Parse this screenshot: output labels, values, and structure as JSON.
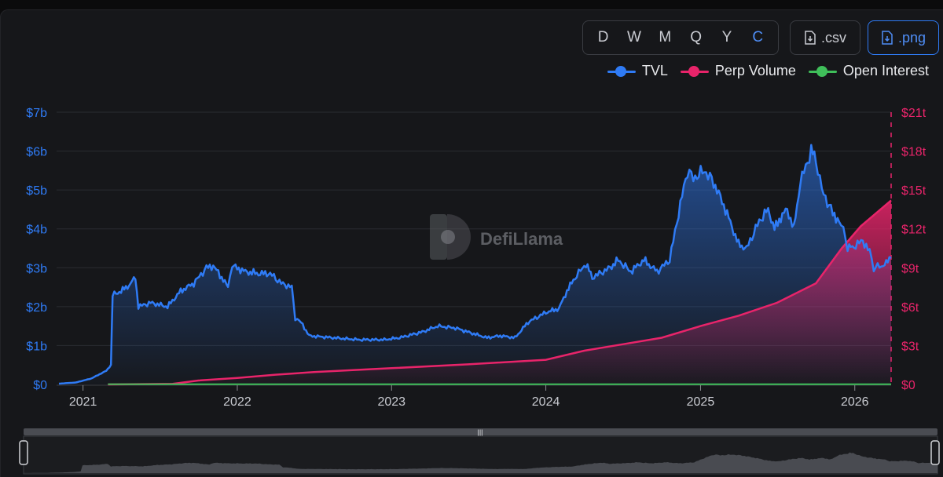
{
  "toolbar": {
    "periods": [
      "D",
      "W",
      "M",
      "Q",
      "Y",
      "C"
    ],
    "active_period": "C",
    "csv_label": ".csv",
    "png_label": ".png"
  },
  "legend": [
    {
      "label": "TVL",
      "color": "#2f7bf5"
    },
    {
      "label": "Perp Volume",
      "color": "#e8246a"
    },
    {
      "label": "Open Interest",
      "color": "#3fbf5a"
    }
  ],
  "watermark": "DefiLlama",
  "chart_data": {
    "type": "line",
    "x_ticks": [
      "2021",
      "2022",
      "2023",
      "2024",
      "2025",
      "2026"
    ],
    "y_left": {
      "ticks": [
        "$0",
        "$1b",
        "$2b",
        "$3b",
        "$4b",
        "$5b",
        "$6b",
        "$7b"
      ],
      "range": [
        0,
        7
      ],
      "unit": "billion USD"
    },
    "y_right": {
      "ticks": [
        "$0",
        "$3t",
        "$6t",
        "$9t",
        "$12t",
        "$15t",
        "$18t",
        "$21t"
      ],
      "range": [
        0,
        21
      ],
      "unit": "trillion USD"
    },
    "grid": true,
    "legend_position": "top-right",
    "series": [
      {
        "name": "TVL",
        "axis": "left",
        "color": "#2f7bf5",
        "points": [
          [
            "2020-11-05",
            0.02
          ],
          [
            "2020-12-15",
            0.05
          ],
          [
            "2021-01-20",
            0.15
          ],
          [
            "2021-02-25",
            0.35
          ],
          [
            "2021-03-08",
            0.5
          ],
          [
            "2021-03-12",
            2.3
          ],
          [
            "2021-04-01",
            2.4
          ],
          [
            "2021-04-20",
            2.55
          ],
          [
            "2021-05-05",
            2.75
          ],
          [
            "2021-05-12",
            2.0
          ],
          [
            "2021-06-10",
            2.1
          ],
          [
            "2021-07-20",
            2.0
          ],
          [
            "2021-08-20",
            2.4
          ],
          [
            "2021-09-20",
            2.6
          ],
          [
            "2021-10-20",
            3.0
          ],
          [
            "2021-11-05",
            3.05
          ],
          [
            "2021-11-25",
            2.75
          ],
          [
            "2021-12-10",
            2.5
          ],
          [
            "2021-12-20",
            3.05
          ],
          [
            "2022-01-20",
            2.9
          ],
          [
            "2022-02-20",
            2.85
          ],
          [
            "2022-03-20",
            2.85
          ],
          [
            "2022-04-15",
            2.6
          ],
          [
            "2022-05-10",
            2.5
          ],
          [
            "2022-05-18",
            1.7
          ],
          [
            "2022-06-01",
            1.6
          ],
          [
            "2022-06-20",
            1.25
          ],
          [
            "2022-08-15",
            1.2
          ],
          [
            "2022-10-15",
            1.15
          ],
          [
            "2022-12-15",
            1.15
          ],
          [
            "2023-01-20",
            1.2
          ],
          [
            "2023-03-15",
            1.35
          ],
          [
            "2023-04-20",
            1.5
          ],
          [
            "2023-06-01",
            1.45
          ],
          [
            "2023-07-15",
            1.3
          ],
          [
            "2023-08-15",
            1.2
          ],
          [
            "2023-09-15",
            1.25
          ],
          [
            "2023-10-20",
            1.2
          ],
          [
            "2023-11-20",
            1.6
          ],
          [
            "2024-01-01",
            1.85
          ],
          [
            "2024-02-01",
            1.95
          ],
          [
            "2024-02-20",
            2.4
          ],
          [
            "2024-03-10",
            2.75
          ],
          [
            "2024-04-05",
            3.1
          ],
          [
            "2024-04-20",
            2.75
          ],
          [
            "2024-06-01",
            3.0
          ],
          [
            "2024-06-20",
            3.2
          ],
          [
            "2024-07-20",
            2.9
          ],
          [
            "2024-08-20",
            3.2
          ],
          [
            "2024-09-20",
            2.9
          ],
          [
            "2024-10-20",
            3.2
          ],
          [
            "2024-11-10",
            4.4
          ],
          [
            "2024-12-01",
            5.5
          ],
          [
            "2024-12-15",
            5.3
          ],
          [
            "2025-01-10",
            5.5
          ],
          [
            "2025-02-01",
            5.2
          ],
          [
            "2025-03-01",
            4.5
          ],
          [
            "2025-04-01",
            3.6
          ],
          [
            "2025-04-20",
            3.5
          ],
          [
            "2025-05-20",
            4.2
          ],
          [
            "2025-06-10",
            4.5
          ],
          [
            "2025-06-25",
            4.0
          ],
          [
            "2025-07-10",
            4.3
          ],
          [
            "2025-07-25",
            4.5
          ],
          [
            "2025-08-10",
            4.0
          ],
          [
            "2025-08-25",
            5.2
          ],
          [
            "2025-09-20",
            6.0
          ],
          [
            "2025-10-01",
            5.8
          ],
          [
            "2025-10-15",
            5.0
          ],
          [
            "2025-11-10",
            4.4
          ],
          [
            "2025-11-25",
            4.2
          ],
          [
            "2025-12-05",
            4.0
          ],
          [
            "2025-12-15",
            3.5
          ],
          [
            "2025-12-30",
            3.55
          ],
          [
            "2026-01-20",
            3.7
          ],
          [
            "2026-02-05",
            3.4
          ],
          [
            "2026-02-15",
            3.0
          ],
          [
            "2026-03-05",
            3.05
          ],
          [
            "2026-03-20",
            3.15
          ],
          [
            "2026-03-28",
            3.25
          ]
        ]
      },
      {
        "name": "Perp Volume",
        "axis": "right",
        "color": "#e8246a",
        "points": [
          [
            "2021-03-01",
            0
          ],
          [
            "2021-08-01",
            0.05
          ],
          [
            "2021-10-01",
            0.3
          ],
          [
            "2022-01-01",
            0.5
          ],
          [
            "2022-04-01",
            0.75
          ],
          [
            "2022-07-01",
            0.95
          ],
          [
            "2023-01-01",
            1.25
          ],
          [
            "2023-07-01",
            1.55
          ],
          [
            "2024-01-01",
            1.9
          ],
          [
            "2024-04-01",
            2.6
          ],
          [
            "2024-07-01",
            3.1
          ],
          [
            "2024-10-01",
            3.6
          ],
          [
            "2025-01-01",
            4.5
          ],
          [
            "2025-04-01",
            5.3
          ],
          [
            "2025-07-01",
            6.3
          ],
          [
            "2025-10-01",
            7.8
          ],
          [
            "2025-12-01",
            10.5
          ],
          [
            "2026-01-15",
            12.2
          ],
          [
            "2026-03-28",
            14.2
          ]
        ]
      },
      {
        "name": "Open Interest",
        "axis": "right",
        "color": "#3fbf5a",
        "points": [
          [
            "2021-03-01",
            0.01
          ],
          [
            "2026-03-28",
            0.01
          ]
        ]
      }
    ]
  }
}
